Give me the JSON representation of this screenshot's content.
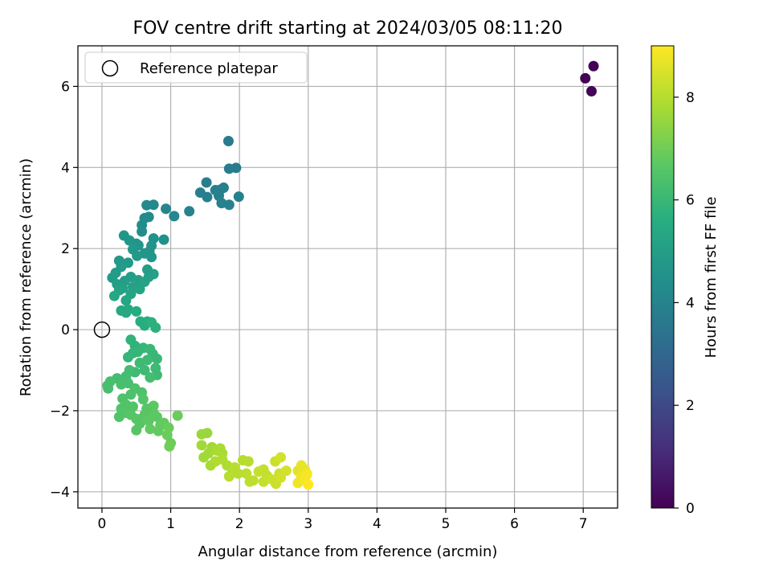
{
  "chart_data": {
    "type": "scatter",
    "title": "FOV centre drift starting at 2024/03/05 08:11:20",
    "xlabel": "Angular distance from reference (arcmin)",
    "ylabel": "Rotation from reference (arcmin)",
    "xlim": [
      -0.35,
      7.5
    ],
    "ylim": [
      -4.4,
      7.0
    ],
    "xticks": [
      0,
      1,
      2,
      3,
      4,
      5,
      6,
      7
    ],
    "yticks": [
      -4,
      -2,
      0,
      2,
      4,
      6
    ],
    "grid": true,
    "legend": {
      "placement": "top-left",
      "entries": [
        "Reference platepar"
      ]
    },
    "colorbar": {
      "label": "Hours from first FF file",
      "range": [
        0,
        9
      ],
      "ticks": [
        0,
        2,
        4,
        6,
        8
      ],
      "colormap": "viridis"
    },
    "reference_point": {
      "x": 0,
      "y": 0
    },
    "points": [
      [
        7.15,
        6.5,
        0.02
      ],
      [
        7.03,
        6.2,
        0.05
      ],
      [
        7.12,
        5.88,
        0.08
      ],
      [
        1.84,
        4.65,
        3.7
      ],
      [
        1.85,
        3.97,
        3.75
      ],
      [
        1.95,
        3.99,
        3.7
      ],
      [
        1.52,
        3.63,
        3.8
      ],
      [
        1.43,
        3.38,
        3.85
      ],
      [
        1.53,
        3.27,
        3.8
      ],
      [
        1.65,
        3.44,
        3.8
      ],
      [
        1.72,
        3.45,
        3.9
      ],
      [
        1.77,
        3.5,
        3.9
      ],
      [
        1.7,
        3.3,
        3.9
      ],
      [
        1.74,
        3.12,
        3.95
      ],
      [
        1.85,
        3.08,
        4.0
      ],
      [
        1.99,
        3.28,
        3.9
      ],
      [
        1.27,
        2.92,
        4.0
      ],
      [
        1.05,
        2.8,
        4.1
      ],
      [
        0.93,
        2.98,
        4.1
      ],
      [
        0.75,
        3.08,
        4.2
      ],
      [
        0.65,
        3.07,
        4.2
      ],
      [
        0.68,
        2.78,
        4.3
      ],
      [
        0.62,
        2.75,
        4.3
      ],
      [
        0.58,
        2.58,
        4.4
      ],
      [
        0.58,
        2.42,
        4.4
      ],
      [
        0.9,
        2.22,
        4.5
      ],
      [
        0.75,
        2.25,
        4.5
      ],
      [
        0.72,
        2.07,
        4.6
      ],
      [
        0.69,
        1.93,
        4.6
      ],
      [
        0.72,
        1.79,
        4.7
      ],
      [
        0.62,
        1.88,
        4.7
      ],
      [
        0.53,
        2.08,
        4.6
      ],
      [
        0.5,
        2.12,
        4.6
      ],
      [
        0.4,
        2.2,
        4.7
      ],
      [
        0.32,
        2.32,
        4.7
      ],
      [
        0.45,
        1.98,
        4.8
      ],
      [
        0.51,
        1.82,
        4.8
      ],
      [
        0.38,
        1.65,
        4.8
      ],
      [
        0.25,
        1.7,
        4.8
      ],
      [
        0.28,
        1.55,
        4.9
      ],
      [
        0.2,
        1.4,
        4.9
      ],
      [
        0.15,
        1.28,
        4.9
      ],
      [
        0.22,
        1.12,
        5.0
      ],
      [
        0.33,
        1.2,
        5.0
      ],
      [
        0.42,
        1.3,
        5.0
      ],
      [
        0.53,
        1.22,
        5.1
      ],
      [
        0.45,
        1.05,
        5.1
      ],
      [
        0.62,
        1.18,
        5.2
      ],
      [
        0.68,
        1.3,
        5.1
      ],
      [
        0.75,
        1.37,
        5.1
      ],
      [
        0.66,
        1.48,
        5.0
      ],
      [
        0.55,
        1.0,
        5.2
      ],
      [
        0.42,
        0.88,
        5.2
      ],
      [
        0.3,
        1.02,
        5.1
      ],
      [
        0.25,
        0.97,
        5.2
      ],
      [
        0.18,
        0.83,
        5.3
      ],
      [
        0.35,
        0.72,
        5.3
      ],
      [
        0.38,
        0.5,
        5.4
      ],
      [
        0.28,
        0.47,
        5.4
      ],
      [
        0.35,
        0.42,
        5.4
      ],
      [
        0.5,
        0.45,
        5.5
      ],
      [
        0.56,
        0.2,
        5.6
      ],
      [
        0.62,
        0.1,
        5.6
      ],
      [
        0.66,
        0.2,
        5.6
      ],
      [
        0.72,
        0.18,
        5.7
      ],
      [
        0.78,
        0.05,
        5.7
      ],
      [
        0.42,
        -0.25,
        5.8
      ],
      [
        0.48,
        -0.4,
        5.8
      ],
      [
        0.52,
        -0.55,
        5.9
      ],
      [
        0.45,
        -0.58,
        5.9
      ],
      [
        0.38,
        -0.68,
        5.9
      ],
      [
        0.6,
        -0.45,
        5.9
      ],
      [
        0.7,
        -0.48,
        6.0
      ],
      [
        0.74,
        -0.6,
        6.0
      ],
      [
        0.8,
        -0.72,
        6.0
      ],
      [
        0.66,
        -0.75,
        6.1
      ],
      [
        0.55,
        -0.82,
        6.1
      ],
      [
        0.62,
        -1.0,
        6.1
      ],
      [
        0.48,
        -1.05,
        6.1
      ],
      [
        0.78,
        -0.95,
        6.1
      ],
      [
        0.8,
        -1.12,
        6.1
      ],
      [
        0.7,
        -1.18,
        6.2
      ],
      [
        0.4,
        -1.0,
        6.2
      ],
      [
        0.35,
        -1.15,
        6.2
      ],
      [
        0.22,
        -1.2,
        6.2
      ],
      [
        0.12,
        -1.28,
        6.3
      ],
      [
        0.08,
        -1.38,
        6.3
      ],
      [
        0.09,
        -1.45,
        6.3
      ],
      [
        0.28,
        -1.35,
        6.3
      ],
      [
        0.38,
        -1.32,
        6.3
      ],
      [
        0.48,
        -1.45,
        6.4
      ],
      [
        0.58,
        -1.55,
        6.4
      ],
      [
        0.42,
        -1.6,
        6.4
      ],
      [
        0.3,
        -1.7,
        6.4
      ],
      [
        0.35,
        -1.85,
        6.5
      ],
      [
        0.45,
        -1.9,
        6.5
      ],
      [
        0.28,
        -1.95,
        6.5
      ],
      [
        0.35,
        -2.05,
        6.5
      ],
      [
        0.25,
        -2.15,
        6.5
      ],
      [
        0.42,
        -2.1,
        6.6
      ],
      [
        0.5,
        -2.2,
        6.6
      ],
      [
        0.55,
        -2.32,
        6.6
      ],
      [
        0.5,
        -2.48,
        6.6
      ],
      [
        0.62,
        -2.1,
        6.6
      ],
      [
        0.68,
        -2.25,
        6.7
      ],
      [
        0.75,
        -2.05,
        6.7
      ],
      [
        0.75,
        -1.88,
        6.7
      ],
      [
        0.8,
        -2.15,
        6.7
      ],
      [
        0.9,
        -2.3,
        6.8
      ],
      [
        0.7,
        -2.45,
        6.8
      ],
      [
        0.82,
        -2.5,
        6.8
      ],
      [
        0.85,
        -2.35,
        6.8
      ],
      [
        0.97,
        -2.42,
        6.9
      ],
      [
        0.95,
        -2.6,
        6.9
      ],
      [
        1.0,
        -2.8,
        6.9
      ],
      [
        0.98,
        -2.88,
        7.0
      ],
      [
        1.1,
        -2.12,
        6.9
      ],
      [
        0.6,
        -1.72,
        6.5
      ],
      [
        0.65,
        -1.95,
        6.6
      ],
      [
        1.45,
        -2.58,
        7.6
      ],
      [
        1.53,
        -2.55,
        7.6
      ],
      [
        1.45,
        -2.85,
        7.7
      ],
      [
        1.48,
        -3.15,
        7.7
      ],
      [
        1.55,
        -3.05,
        7.7
      ],
      [
        1.6,
        -2.9,
        7.7
      ],
      [
        1.67,
        -2.98,
        7.8
      ],
      [
        1.72,
        -2.93,
        7.8
      ],
      [
        1.75,
        -3.05,
        7.8
      ],
      [
        1.58,
        -3.35,
        7.8
      ],
      [
        1.65,
        -3.25,
        7.9
      ],
      [
        1.75,
        -3.2,
        7.9
      ],
      [
        1.82,
        -3.35,
        7.9
      ],
      [
        1.9,
        -3.52,
        7.9
      ],
      [
        1.85,
        -3.62,
        8.0
      ],
      [
        1.93,
        -3.4,
        8.0
      ],
      [
        1.98,
        -3.55,
        8.0
      ],
      [
        2.05,
        -3.22,
        8.0
      ],
      [
        2.13,
        -3.25,
        8.0
      ],
      [
        2.1,
        -3.55,
        8.1
      ],
      [
        2.15,
        -3.75,
        8.1
      ],
      [
        2.2,
        -3.72,
        8.1
      ],
      [
        2.28,
        -3.5,
        8.2
      ],
      [
        2.35,
        -3.45,
        8.2
      ],
      [
        2.4,
        -3.6,
        8.2
      ],
      [
        2.35,
        -3.75,
        8.2
      ],
      [
        2.48,
        -3.7,
        8.3
      ],
      [
        2.53,
        -3.8,
        8.3
      ],
      [
        2.58,
        -3.55,
        8.3
      ],
      [
        2.52,
        -3.25,
        8.3
      ],
      [
        2.6,
        -3.15,
        8.4
      ],
      [
        2.6,
        -3.65,
        8.4
      ],
      [
        2.68,
        -3.48,
        8.4
      ],
      [
        2.85,
        -3.48,
        8.6
      ],
      [
        2.9,
        -3.35,
        8.7
      ],
      [
        2.95,
        -3.45,
        8.7
      ],
      [
        2.98,
        -3.55,
        8.8
      ],
      [
        2.9,
        -3.62,
        8.8
      ],
      [
        2.85,
        -3.78,
        8.8
      ],
      [
        2.95,
        -3.7,
        8.9
      ],
      [
        3.0,
        -3.82,
        9.0
      ],
      [
        2.98,
        -3.58,
        8.9
      ]
    ]
  }
}
